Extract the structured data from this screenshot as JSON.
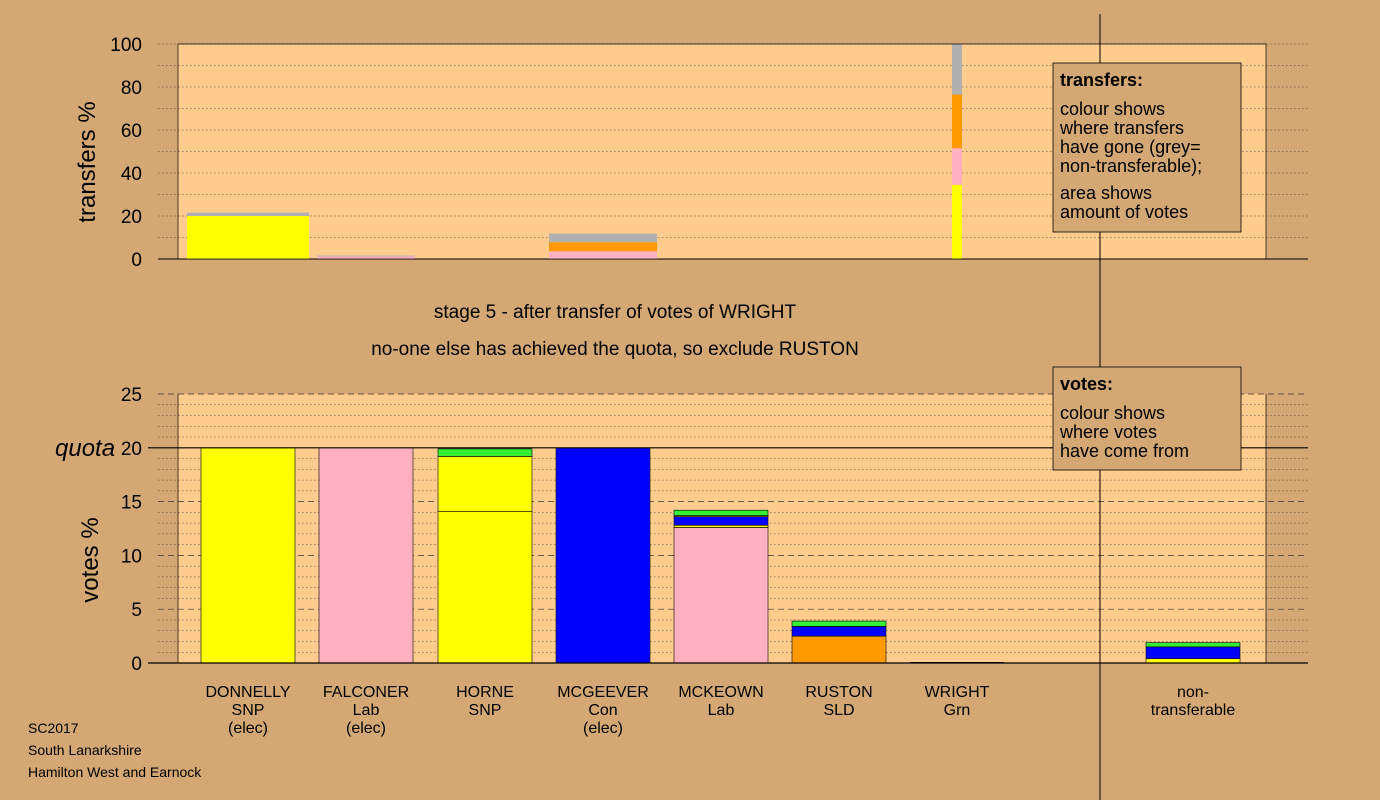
{
  "colors": {
    "background": "#D4A874",
    "plot": "#FFCC8E",
    "SNP": "#FFFF00",
    "Lab": "#FFB0C0",
    "Con": "#0000FF",
    "SLD": "#FF9900",
    "Grn": "#33EE33",
    "non_transferable": "#B0B0B0"
  },
  "footer": [
    "SC2017",
    "South Lanarkshire",
    "Hamilton West and Earnock"
  ],
  "captions": {
    "stage": "stage 5 - after transfer of votes of WRIGHT",
    "status": "no-one else has achieved the quota, so exclude RUSTON"
  },
  "legend_transfers": {
    "title": "transfers:",
    "lines": [
      "colour shows",
      "where transfers",
      "have gone (grey=",
      "non-transferable);",
      "area shows",
      "amount of votes"
    ]
  },
  "legend_votes": {
    "title": "votes:",
    "lines": [
      "colour shows",
      "where votes",
      "have come from"
    ]
  },
  "candidates": [
    {
      "name": "DONNELLY",
      "party": "SNP",
      "status": "(elec)"
    },
    {
      "name": "FALCONER",
      "party": "Lab",
      "status": "(elec)"
    },
    {
      "name": "HORNE",
      "party": "SNP",
      "status": ""
    },
    {
      "name": "MCGEEVER",
      "party": "Con",
      "status": "(elec)"
    },
    {
      "name": "MCKEOWN",
      "party": "Lab",
      "status": ""
    },
    {
      "name": "RUSTON",
      "party": "SLD",
      "status": ""
    },
    {
      "name": "WRIGHT",
      "party": "Grn",
      "status": ""
    },
    {
      "name": "non-",
      "party": "transferable",
      "status": ""
    }
  ],
  "chart_data": [
    {
      "type": "bar",
      "ylabel": "transfers %",
      "ylim": [
        0,
        100
      ],
      "yticks": [
        "0",
        "20",
        "40",
        "60",
        "80",
        "100"
      ],
      "grid": "dotted",
      "bars": [
        {
          "candidate": "DONNELLY",
          "segments": [
            {
              "source": "SNP",
              "value": 20.0
            },
            {
              "source": "non_transferable",
              "value": 1.6
            }
          ]
        },
        {
          "candidate": "FALCONER",
          "segments": [
            {
              "source": "Lab",
              "value": 1.2
            },
            {
              "source": "non_transferable",
              "value": 0.4
            }
          ]
        },
        {
          "candidate": "MCGEEVER",
          "segments": [
            {
              "source": "Lab",
              "value": 3.6
            },
            {
              "source": "SLD",
              "value": 4.2
            },
            {
              "source": "non_transferable",
              "value": 4.0
            }
          ]
        },
        {
          "candidate": "WRIGHT",
          "segments": [
            {
              "source": "SNP",
              "value": 34.5
            },
            {
              "source": "Lab",
              "value": 17.0
            },
            {
              "source": "SLD",
              "value": 25.0
            },
            {
              "source": "non_transferable",
              "value": 23.5
            }
          ]
        }
      ]
    },
    {
      "type": "bar",
      "ylabel": "votes %",
      "ylim": [
        0,
        25
      ],
      "yticks": [
        "0",
        "5",
        "10",
        "15",
        "20",
        "25"
      ],
      "quota": {
        "label": "quota",
        "value": 20
      },
      "grid": "dashed",
      "bars": [
        {
          "candidate": "DONNELLY",
          "segments": [
            {
              "source": "SNP",
              "value": 20.0
            }
          ]
        },
        {
          "candidate": "FALCONER",
          "segments": [
            {
              "source": "Lab",
              "value": 20.0
            }
          ]
        },
        {
          "candidate": "HORNE",
          "segments": [
            {
              "source": "SNP",
              "value": 14.1
            },
            {
              "source": "SNP",
              "value": 5.1
            },
            {
              "source": "Grn",
              "value": 0.7
            }
          ]
        },
        {
          "candidate": "MCGEEVER",
          "segments": [
            {
              "source": "Con",
              "value": 20.0
            }
          ]
        },
        {
          "candidate": "MCKEOWN",
          "segments": [
            {
              "source": "Lab",
              "value": 12.6
            },
            {
              "source": "SNP",
              "value": 0.2
            },
            {
              "source": "Con",
              "value": 0.8
            },
            {
              "source": "SLD",
              "value": 0.1
            },
            {
              "source": "Grn",
              "value": 0.5
            }
          ]
        },
        {
          "candidate": "RUSTON",
          "segments": [
            {
              "source": "SLD",
              "value": 2.5
            },
            {
              "source": "Con",
              "value": 0.9
            },
            {
              "source": "Grn",
              "value": 0.5
            }
          ]
        },
        {
          "candidate": "WRIGHT",
          "segments": []
        },
        {
          "candidate": "non-transferable",
          "segments": [
            {
              "source": "SNP",
              "value": 0.4
            },
            {
              "source": "Con",
              "value": 1.1
            },
            {
              "source": "Grn",
              "value": 0.4
            }
          ]
        }
      ]
    }
  ]
}
